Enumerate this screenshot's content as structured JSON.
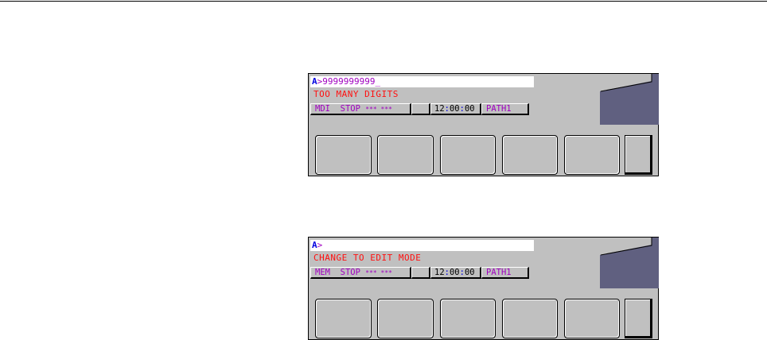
{
  "panels": [
    {
      "prompt": "A",
      "input_value": ">9999999999_",
      "message": "TOO MANY DIGITS",
      "mode": "MDI",
      "state": "STOP",
      "alarm": "*** ***",
      "time_h": "12",
      "time_m": "00",
      "time_s": "00",
      "path": "PATH1"
    },
    {
      "prompt": "A",
      "input_value": ">",
      "message": "CHANGE TO EDIT MODE",
      "mode": "MEM",
      "state": "STOP",
      "alarm": "*** ***",
      "time_h": "12",
      "time_m": "00",
      "time_s": "00",
      "path": "PATH1"
    }
  ],
  "colors": {
    "message": "#ff1010",
    "status_text": "#a000c0",
    "prompt": "#0000e0",
    "panel": "#c0c0c0",
    "dark_block": "#606080"
  }
}
